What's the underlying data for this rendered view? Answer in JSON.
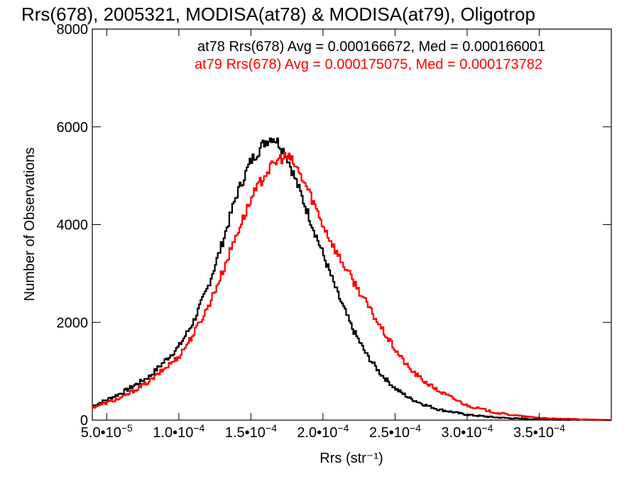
{
  "chart_data": {
    "type": "histogram",
    "title": "Rrs(678), 2005321, MODISA(at78) & MODISA(at79), Oligotrop",
    "xlabel": "Rrs (str⁻¹)",
    "ylabel": "Number of Observations",
    "xlim": [
      4e-05,
      0.0004
    ],
    "ylim": [
      0,
      8000
    ],
    "x_ticks": [
      {
        "value": 5e-05,
        "mantissa": "5.0•10",
        "exponent": "−5"
      },
      {
        "value": 0.0001,
        "mantissa": "1.0•10",
        "exponent": "−4"
      },
      {
        "value": 0.00015,
        "mantissa": "1.5•10",
        "exponent": "−4"
      },
      {
        "value": 0.0002,
        "mantissa": "2.0•10",
        "exponent": "−4"
      },
      {
        "value": 0.00025,
        "mantissa": "2.5•10",
        "exponent": "−4"
      },
      {
        "value": 0.0003,
        "mantissa": "3.0•10",
        "exponent": "−4"
      },
      {
        "value": 0.00035,
        "mantissa": "3.5•10",
        "exponent": "−4"
      }
    ],
    "y_ticks": [
      "0",
      "2000",
      "4000",
      "6000",
      "8000"
    ],
    "series": [
      {
        "name": "at78",
        "color": "#000000",
        "legend": "at78 Rrs(678) Avg = 0.000166672, Med = 0.000166001",
        "x": [
          4e-05,
          6e-05,
          8e-05,
          0.0001,
          0.00011,
          0.00012,
          0.00013,
          0.00014,
          0.00015,
          0.00016,
          0.000165,
          0.00017,
          0.000175,
          0.00018,
          0.00019,
          0.0002,
          0.00021,
          0.00022,
          0.00023,
          0.00024,
          0.00025,
          0.00026,
          0.00027,
          0.00028,
          0.0003,
          0.00032,
          0.00034,
          0.00036,
          0.0004
        ],
        "y": [
          280,
          550,
          900,
          1500,
          2000,
          2700,
          3600,
          4600,
          5300,
          5700,
          5800,
          5650,
          5400,
          5000,
          4200,
          3400,
          2600,
          1900,
          1350,
          950,
          650,
          450,
          320,
          220,
          110,
          55,
          25,
          10,
          0
        ]
      },
      {
        "name": "at79",
        "color": "#ff0000",
        "legend": "at79 Rrs(678) Avg = 0.000175075, Med = 0.000173782",
        "x": [
          4e-05,
          6e-05,
          8e-05,
          0.0001,
          0.00011,
          0.00012,
          0.00013,
          0.00014,
          0.00015,
          0.00016,
          0.00017,
          0.000175,
          0.00018,
          0.00019,
          0.0002,
          0.00021,
          0.00022,
          0.00023,
          0.00024,
          0.00025,
          0.00026,
          0.00027,
          0.00028,
          0.0003,
          0.00032,
          0.00034,
          0.00036,
          0.0004
        ],
        "y": [
          260,
          450,
          800,
          1300,
          1750,
          2300,
          3000,
          3800,
          4500,
          5050,
          5350,
          5400,
          5250,
          4700,
          4000,
          3400,
          2900,
          2400,
          1900,
          1450,
          1050,
          800,
          600,
          300,
          150,
          70,
          30,
          0
        ]
      }
    ],
    "grid": false
  }
}
